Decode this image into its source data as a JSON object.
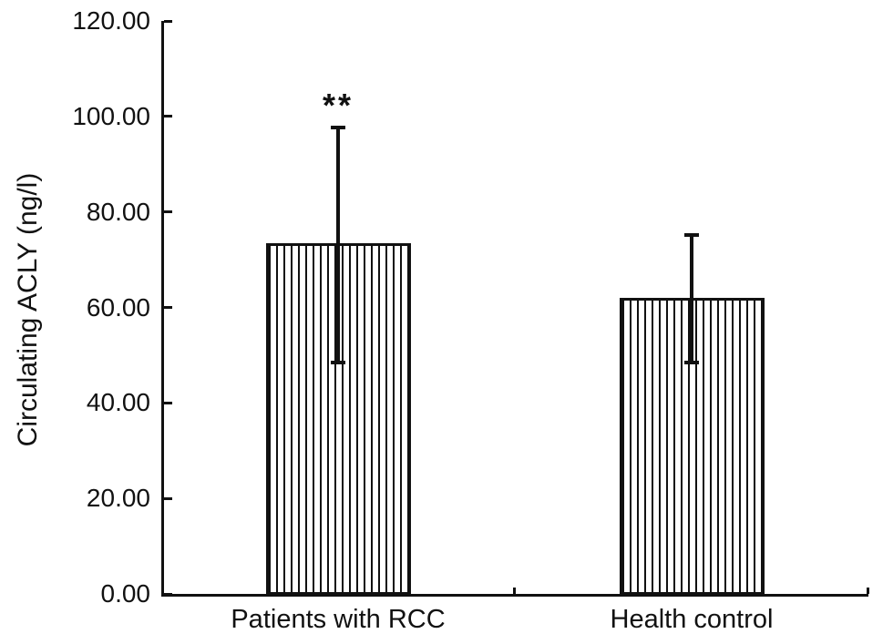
{
  "figure": {
    "background": "#ffffff",
    "ink_color": "#111111"
  },
  "chart_data": {
    "type": "bar",
    "title": "",
    "xlabel": "",
    "ylabel": "Circulating ACLY (ng/l)",
    "ylim": [
      0,
      120
    ],
    "ytick_step": 20,
    "ytick_labels": [
      "0.00",
      "20.00",
      "40.00",
      "60.00",
      "80.00",
      "100.00",
      "120.00"
    ],
    "categories": [
      "Patients with RCC",
      "Health control"
    ],
    "series": [
      {
        "name": "Circulating ACLY",
        "values": [
          73.5,
          62.0
        ],
        "error_upper": [
          98.0,
          75.5
        ],
        "error_lower": [
          48.0,
          48.0
        ]
      }
    ],
    "annotations": [
      {
        "category": "Patients with RCC",
        "text": "**"
      }
    ],
    "bar_fill": "vertical-hatch",
    "bar_border_color": "#111111",
    "grid": false,
    "legend_position": "none"
  }
}
